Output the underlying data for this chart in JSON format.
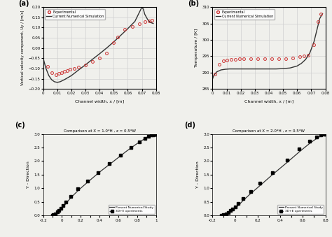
{
  "panel_a": {
    "label": "(a)",
    "xlabel": "Channel width, x / [m]",
    "ylabel": "Vertical velocity component, Uy / [m/s]",
    "xlim": [
      0,
      0.08
    ],
    "ylim": [
      -0.2,
      0.2
    ],
    "xticks": [
      0,
      0.01,
      0.02,
      0.03,
      0.04,
      0.05,
      0.06,
      0.07,
      0.08
    ],
    "yticks": [
      -0.2,
      -0.15,
      -0.1,
      -0.05,
      0,
      0.05,
      0.1,
      0.15,
      0.2
    ],
    "legend": [
      "Experimental",
      "Current Numerical Simulation"
    ],
    "sim_x": [
      0,
      0.002,
      0.004,
      0.006,
      0.008,
      0.01,
      0.012,
      0.015,
      0.02,
      0.025,
      0.03,
      0.035,
      0.04,
      0.045,
      0.05,
      0.055,
      0.06,
      0.065,
      0.07,
      0.071,
      0.072,
      0.074,
      0.076,
      0.078
    ],
    "sim_y": [
      -0.05,
      -0.1,
      -0.135,
      -0.155,
      -0.165,
      -0.168,
      -0.165,
      -0.155,
      -0.135,
      -0.108,
      -0.082,
      -0.055,
      -0.028,
      0.0,
      0.03,
      0.062,
      0.095,
      0.13,
      0.2,
      0.19,
      0.165,
      0.14,
      0.125,
      0.12
    ],
    "exp_x": [
      0.003,
      0.006,
      0.009,
      0.011,
      0.013,
      0.015,
      0.017,
      0.019,
      0.022,
      0.025,
      0.03,
      0.035,
      0.04,
      0.045,
      0.05,
      0.053,
      0.058,
      0.063,
      0.068,
      0.072,
      0.075,
      0.077
    ],
    "exp_y": [
      -0.09,
      -0.12,
      -0.13,
      -0.125,
      -0.12,
      -0.115,
      -0.11,
      -0.105,
      -0.1,
      -0.093,
      -0.082,
      -0.065,
      -0.048,
      -0.025,
      0.025,
      0.055,
      0.09,
      0.105,
      0.12,
      0.13,
      0.133,
      0.135
    ]
  },
  "panel_b": {
    "label": "(b)",
    "xlabel": "Channel width, x / [m]",
    "ylabel": "Temperature / [K]",
    "xlim": [
      0,
      0.08
    ],
    "ylim": [
      285,
      310
    ],
    "xticks": [
      0,
      0.01,
      0.02,
      0.03,
      0.04,
      0.05,
      0.06,
      0.07,
      0.08
    ],
    "yticks": [
      285,
      290,
      295,
      300,
      305,
      310
    ],
    "legend": [
      "Experimental",
      "Current Numerical Simulation"
    ],
    "sim_x": [
      0,
      0.001,
      0.003,
      0.006,
      0.009,
      0.012,
      0.016,
      0.02,
      0.025,
      0.03,
      0.035,
      0.04,
      0.045,
      0.05,
      0.055,
      0.06,
      0.063,
      0.066,
      0.069,
      0.072,
      0.074,
      0.076,
      0.078
    ],
    "sim_y": [
      288.0,
      289.2,
      290.2,
      290.8,
      291.0,
      291.1,
      291.1,
      291.1,
      291.1,
      291.1,
      291.1,
      291.1,
      291.1,
      291.2,
      291.4,
      292.0,
      292.8,
      294.0,
      296.0,
      299.5,
      303.0,
      306.5,
      308.0
    ],
    "exp_x": [
      0.002,
      0.005,
      0.008,
      0.01,
      0.013,
      0.016,
      0.019,
      0.022,
      0.027,
      0.032,
      0.037,
      0.042,
      0.047,
      0.052,
      0.057,
      0.062,
      0.065,
      0.068,
      0.072,
      0.075,
      0.077
    ],
    "exp_y": [
      289.5,
      292.5,
      293.5,
      293.8,
      294.0,
      294.1,
      294.15,
      294.2,
      294.2,
      294.2,
      294.2,
      294.2,
      294.2,
      294.3,
      294.5,
      294.8,
      295.0,
      295.2,
      298.5,
      305.5,
      308.0
    ]
  },
  "panel_c": {
    "label": "(c)",
    "title": "Comparison at X = 1.0*H , z = 0.5*W",
    "ylabel": "Y - Direction",
    "xlim": [
      -0.2,
      1.0
    ],
    "ylim": [
      0,
      3
    ],
    "xticks": [
      -0.2,
      -0.1,
      0,
      0.1,
      0.2,
      0.3,
      0.4,
      0.5,
      0.6,
      0.7,
      0.8,
      0.9,
      1.0
    ],
    "xtick_labels": [
      "-0.2",
      "",
      "0",
      "",
      "0.2",
      "",
      "0.4",
      "",
      "0.6",
      "",
      "0.8",
      "",
      "1"
    ],
    "yticks": [
      0,
      0.5,
      1.0,
      1.5,
      2.0,
      2.5,
      3.0
    ],
    "legend": [
      "Present Numerical Study",
      "3D+E xperiments"
    ],
    "sim_x": [
      -0.12,
      -0.1,
      -0.08,
      -0.06,
      -0.04,
      -0.025,
      -0.01,
      0.0,
      0.02,
      0.05,
      0.1,
      0.18,
      0.28,
      0.4,
      0.55,
      0.68,
      0.78,
      0.86,
      0.9,
      0.93,
      0.95,
      0.96,
      0.97,
      0.975,
      0.98,
      0.99,
      1.0
    ],
    "sim_y": [
      0.0,
      0.02,
      0.05,
      0.09,
      0.13,
      0.18,
      0.23,
      0.28,
      0.35,
      0.48,
      0.68,
      0.95,
      1.25,
      1.6,
      2.0,
      2.35,
      2.6,
      2.78,
      2.87,
      2.93,
      2.96,
      2.975,
      2.985,
      2.99,
      2.995,
      2.998,
      3.0
    ],
    "exp_x": [
      -0.1,
      -0.09,
      -0.07,
      -0.05,
      -0.03,
      -0.01,
      0.01,
      0.04,
      0.09,
      0.17,
      0.27,
      0.38,
      0.5,
      0.62,
      0.73,
      0.82,
      0.88,
      0.92,
      0.95,
      0.97,
      0.985,
      0.995,
      1.0
    ],
    "exp_y": [
      0.0,
      0.03,
      0.07,
      0.13,
      0.2,
      0.28,
      0.37,
      0.5,
      0.7,
      0.98,
      1.28,
      1.58,
      1.9,
      2.22,
      2.5,
      2.7,
      2.83,
      2.9,
      2.95,
      2.97,
      2.99,
      2.997,
      3.0
    ]
  },
  "panel_d": {
    "label": "(d)",
    "title": "Comparison at X = 2.0*H , z = 0.5*W",
    "ylabel": "Y - Direction",
    "xlim": [
      -0.2,
      0.8
    ],
    "ylim": [
      0,
      3
    ],
    "xticks": [
      -0.2,
      -0.1,
      0,
      0.1,
      0.2,
      0.3,
      0.4,
      0.5,
      0.6,
      0.7,
      0.8
    ],
    "xtick_labels": [
      "-0.2",
      "",
      "0",
      "",
      "0.2",
      "",
      "0.4",
      "",
      "0.6",
      "",
      "0.8"
    ],
    "yticks": [
      0,
      0.5,
      1.0,
      1.5,
      2.0,
      2.5,
      3.0
    ],
    "legend": [
      "Present Numerical Study",
      "3D+E xperiments"
    ],
    "sim_x": [
      -0.12,
      -0.1,
      -0.08,
      -0.06,
      -0.04,
      -0.02,
      0.0,
      0.03,
      0.07,
      0.13,
      0.22,
      0.33,
      0.46,
      0.58,
      0.67,
      0.73,
      0.77,
      0.79,
      0.8
    ],
    "sim_y": [
      0.0,
      0.02,
      0.05,
      0.09,
      0.14,
      0.2,
      0.27,
      0.38,
      0.55,
      0.78,
      1.1,
      1.5,
      1.95,
      2.38,
      2.68,
      2.85,
      2.95,
      2.99,
      3.0
    ],
    "exp_x": [
      -0.12,
      -0.1,
      -0.08,
      -0.06,
      -0.04,
      -0.02,
      0.0,
      0.03,
      0.07,
      0.14,
      0.22,
      0.33,
      0.46,
      0.57,
      0.66,
      0.72,
      0.76,
      0.79,
      0.8
    ],
    "exp_y": [
      0.0,
      0.03,
      0.07,
      0.12,
      0.18,
      0.25,
      0.33,
      0.45,
      0.63,
      0.88,
      1.18,
      1.58,
      2.05,
      2.45,
      2.72,
      2.88,
      2.95,
      2.99,
      3.0
    ]
  },
  "exp_color": "#cc3333",
  "sim_color": "#333333",
  "bg_color": "#f0f0ec",
  "grid_color": "#d0d0d0"
}
